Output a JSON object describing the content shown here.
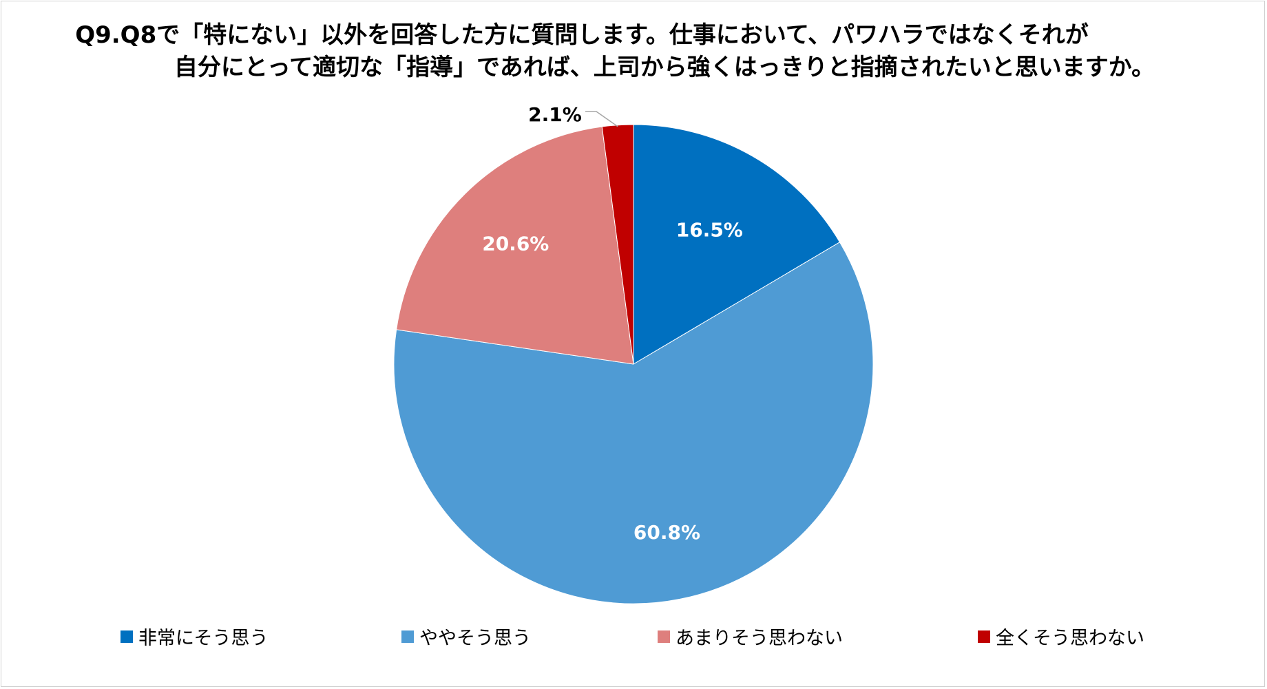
{
  "title": {
    "line1": "Q9.Q8で「特にない」以外を回答した方に質問します。仕事において、パワハラではなくそれが",
    "line2": "自分にとって適切な「指導」であれば、上司から強くはっきりと指摘されたいと思いますか。"
  },
  "chart_data": {
    "type": "pie",
    "categories": [
      "非常にそう思う",
      "ややそう思う",
      "あまりそう思わない",
      "全くそう思わない"
    ],
    "values": [
      16.5,
      60.8,
      20.6,
      2.1
    ],
    "labels": [
      "16.5%",
      "60.8%",
      "20.6%",
      "2.1%"
    ],
    "colors": [
      "#0070C0",
      "#4F9BD4",
      "#DE7F7D",
      "#C00000"
    ],
    "label_colors": [
      "#ffffff",
      "#ffffff",
      "#ffffff",
      "#000000"
    ],
    "start": "12 o'clock",
    "direction": "clockwise",
    "legend_position": "bottom"
  }
}
